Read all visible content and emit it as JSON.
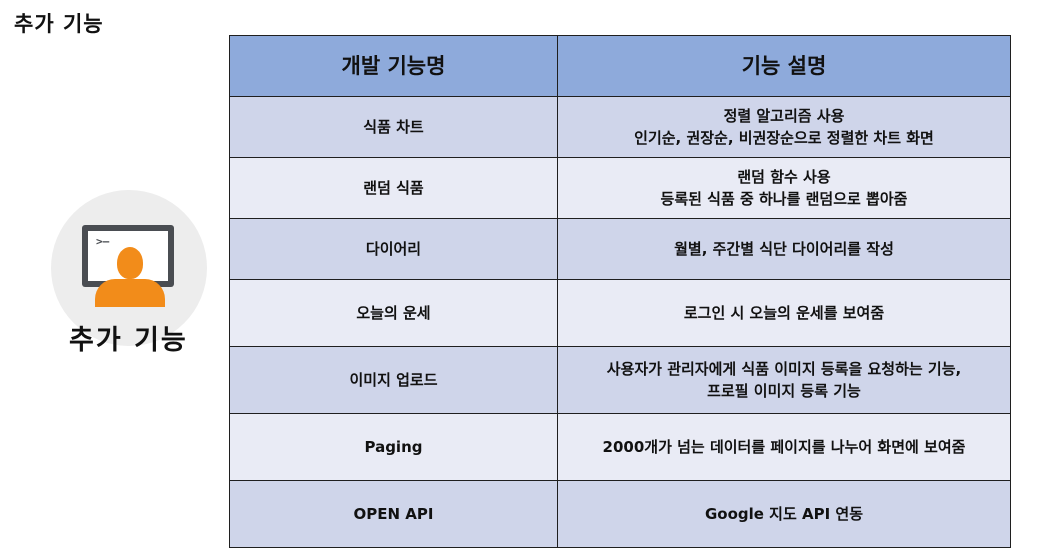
{
  "page": {
    "heading": "추가 기능",
    "section_label": "추가 기능",
    "icon": "user-at-computer-icon",
    "prompt_glyph": ">–"
  },
  "table": {
    "headers": [
      "개발 기능명",
      "기능 설명"
    ],
    "rows": [
      {
        "name": "식품 차트",
        "desc": [
          "정렬 알고리즘 사용",
          "인기순, 권장순, 비권장순으로 정렬한 차트 화면"
        ]
      },
      {
        "name": "랜덤 식품",
        "desc": [
          "랜덤 함수 사용",
          "등록된 식품 중 하나를 랜덤으로 뽑아줌"
        ]
      },
      {
        "name": "다이어리",
        "desc": [
          "월별, 주간별 식단 다이어리를 작성"
        ]
      },
      {
        "name": "오늘의 운세",
        "desc": [
          "로그인 시 오늘의 운세를 보여줌"
        ]
      },
      {
        "name": "이미지 업로드",
        "desc": [
          "사용자가 관리자에게 식품 이미지 등록을 요청하는 기능,",
          "프로필 이미지 등록 기능"
        ]
      },
      {
        "name": "Paging",
        "desc": [
          "2000개가 넘는 데이터를 페이지를 나누어 화면에 보여줌"
        ]
      },
      {
        "name": "OPEN API",
        "desc": [
          "Google 지도 API 연동"
        ]
      }
    ]
  },
  "colors": {
    "header_bg": "#8eaadb",
    "row_dark": "#cfd5ea",
    "row_light": "#e9ebf5",
    "accent_user": "#f28c1a",
    "monitor": "#4a4d52"
  }
}
